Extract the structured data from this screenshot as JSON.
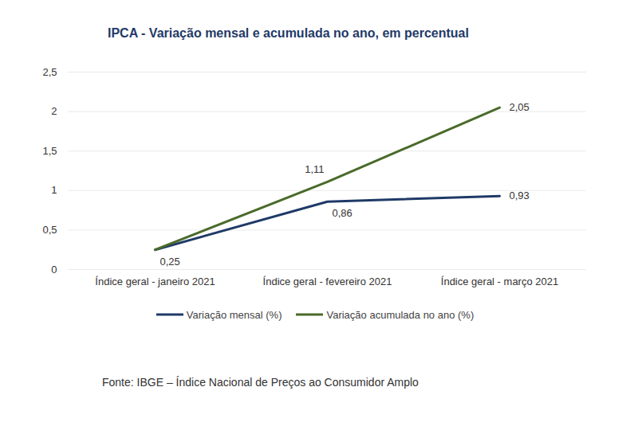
{
  "chart_data": {
    "type": "line",
    "title": "IPCA - Variação mensal e acumulada no ano, em percentual",
    "source": "Fonte: IBGE – Índice Nacional de Preços ao Consumidor Amplo",
    "categories": [
      "Índice geral - janeiro 2021",
      "Índice geral - fevereiro 2021",
      "Índice geral - março 2021"
    ],
    "series": [
      {
        "name": "Variação mensal (%)",
        "color": "#1f3a68",
        "values": [
          0.25,
          0.86,
          0.93
        ],
        "value_labels": [
          "0,25",
          "0,86",
          "0,93"
        ]
      },
      {
        "name": "Variação acumulada no ano (%)",
        "color": "#4a6b2a",
        "values": [
          0.25,
          1.11,
          2.05
        ],
        "value_labels": [
          null,
          "1,11",
          "2,05"
        ]
      }
    ],
    "ylim": [
      0,
      2.5
    ],
    "yticks": [
      0,
      {
        "value": 0.5,
        "label": "0,5"
      },
      1,
      {
        "value": 1.5,
        "label": "1,5"
      },
      2,
      {
        "value": 2.5,
        "label": "2,5"
      }
    ],
    "grid": true,
    "data_labels": true,
    "legend": "bottom"
  }
}
